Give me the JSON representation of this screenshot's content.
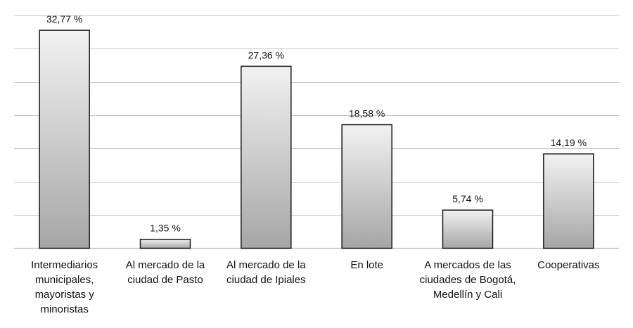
{
  "chart_data": {
    "type": "bar",
    "title": "",
    "xlabel": "",
    "ylabel": "",
    "ylim": [
      0,
      35
    ],
    "grid": true,
    "categories": [
      [
        "Intermediarios",
        "municipales,",
        "mayoristas y",
        "minoristas"
      ],
      [
        "Al mercado de la",
        "ciudad de Pasto"
      ],
      [
        "Al mercado de la",
        "ciudad de Ipiales"
      ],
      [
        "En lote"
      ],
      [
        "A mercados de las",
        "ciudades de Bogotá,",
        "Medellín y Cali"
      ],
      [
        "Cooperativas"
      ]
    ],
    "values": [
      32.77,
      1.35,
      27.36,
      18.58,
      5.74,
      14.19
    ],
    "value_labels": [
      "32,77 %",
      "1,35 %",
      "27,36 %",
      "18,58 %",
      "5,74 %",
      "14,19 %"
    ],
    "colors": {
      "bar_light": "#f2f2f2",
      "bar_dark": "#a6a6a6",
      "bar_stroke": "#1a1a1a",
      "grid": "#c8c8c8",
      "axis": "#bdbdbd"
    }
  }
}
